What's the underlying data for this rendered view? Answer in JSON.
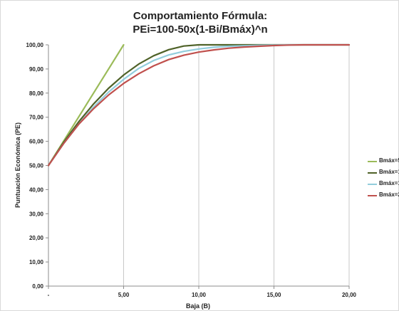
{
  "chart_data": {
    "type": "line",
    "title_line1": "Comportamiento Fórmula:",
    "title_line2": "PEi=100-50x(1-Bi/Bmáx)^n",
    "xlabel": "Baja (B)",
    "ylabel": "Puntuación Económica (PE)",
    "xlim": [
      0,
      20
    ],
    "ylim": [
      0,
      100
    ],
    "x_ticks": [
      0,
      5,
      10,
      15,
      20
    ],
    "x_tick_labels": [
      "-",
      "5,00",
      "10,00",
      "15,00",
      "20,00"
    ],
    "y_ticks": [
      0,
      10,
      20,
      30,
      40,
      50,
      60,
      70,
      80,
      90,
      100
    ],
    "y_tick_labels": [
      "0,00",
      "10,00",
      "20,00",
      "30,00",
      "40,00",
      "50,00",
      "60,00",
      "70,00",
      "80,00",
      "90,00",
      "100,00"
    ],
    "grid": "vertical",
    "legend_position": "right",
    "series": [
      {
        "name": "Bmáx=5",
        "color": "#9bbb59",
        "x": [
          0,
          1,
          2,
          3,
          4,
          5
        ],
        "values": [
          50,
          60,
          70,
          80,
          90,
          100
        ]
      },
      {
        "name": "Bmáx=1",
        "color": "#4f6228",
        "x": [
          0,
          1,
          2,
          3,
          4,
          5,
          6,
          7,
          8,
          9,
          10,
          11,
          12,
          13,
          14,
          15,
          16,
          17,
          18,
          19,
          20
        ],
        "values": [
          50,
          59.5,
          68,
          75.5,
          82,
          87.5,
          92,
          95.5,
          98,
          99.5,
          100,
          100,
          100,
          100,
          100,
          100,
          100,
          100,
          100,
          100,
          100
        ]
      },
      {
        "name": "Bmáx=1",
        "color": "#92cddc",
        "x": [
          0,
          1,
          2,
          3,
          4,
          5,
          6,
          7,
          8,
          9,
          10,
          11,
          12,
          13,
          14,
          15,
          16,
          17,
          18,
          19,
          20
        ],
        "values": [
          50,
          59,
          67,
          74.2,
          80.4,
          85.7,
          90.2,
          93.5,
          95.8,
          97.3,
          98.3,
          99,
          99.4,
          99.6,
          99.8,
          99.9,
          100,
          100,
          100,
          100,
          100
        ]
      },
      {
        "name": "Bmáx=2",
        "color": "#c0504d",
        "x": [
          0,
          1,
          2,
          3,
          4,
          5,
          6,
          7,
          8,
          9,
          10,
          11,
          12,
          13,
          14,
          15,
          16,
          17,
          18,
          19,
          20
        ],
        "values": [
          50,
          59,
          67,
          73.5,
          79.2,
          84,
          88,
          91.3,
          93.9,
          95.7,
          97,
          97.9,
          98.6,
          99.1,
          99.4,
          99.7,
          99.9,
          100,
          100,
          100,
          100
        ]
      }
    ]
  }
}
